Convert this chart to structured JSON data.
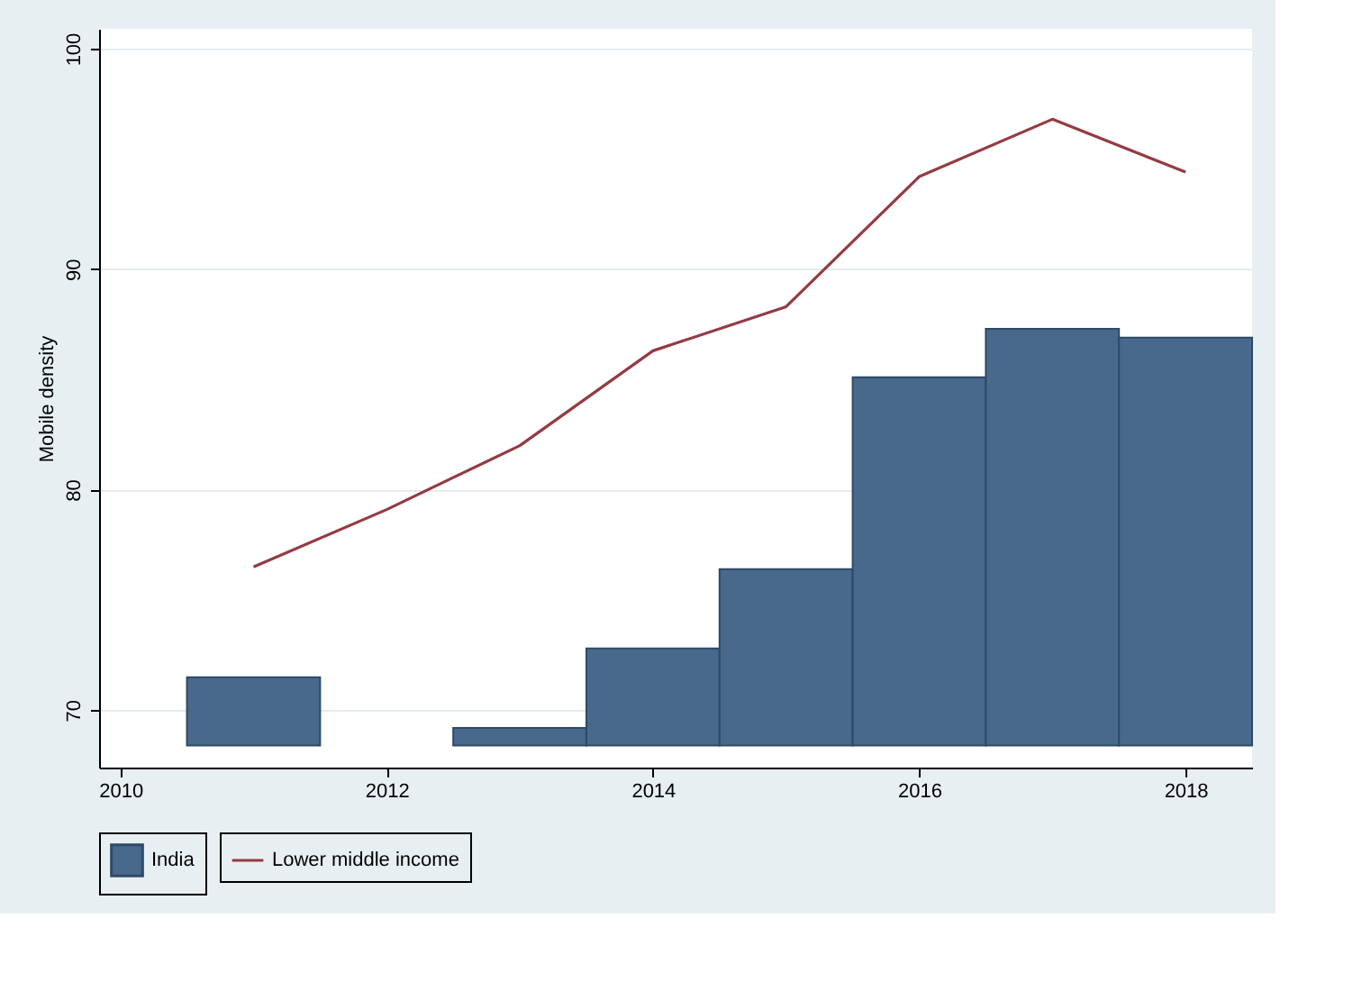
{
  "chart_data": {
    "type": "bar",
    "ylabel": "Mobile density",
    "x": [
      2011,
      2012,
      2013,
      2014,
      2015,
      2016,
      2017,
      2018
    ],
    "series": [
      {
        "name": "India",
        "color": "#48698b",
        "base": [
          68.4,
          null,
          68.4,
          68.4,
          68.4,
          68.4,
          68.4,
          68.4
        ],
        "values": [
          3.1,
          null,
          0.8,
          4.4,
          8.0,
          16.7,
          18.9,
          18.5
        ]
      },
      {
        "name": "Lower middle income",
        "type": "line",
        "color": "#943b42",
        "values": [
          76.5,
          79.1,
          82.0,
          86.3,
          88.3,
          94.2,
          96.8,
          94.4
        ]
      }
    ],
    "xlim": [
      2009.84,
      2018.5
    ],
    "xticks": [
      2010,
      2012,
      2014,
      2016,
      2018
    ],
    "ylim": [
      67.4,
      100.9
    ],
    "yticks": [
      70,
      80,
      90,
      100
    ],
    "grid": "y",
    "legend": "bottom",
    "line_style": "solid",
    "marker": "none"
  }
}
